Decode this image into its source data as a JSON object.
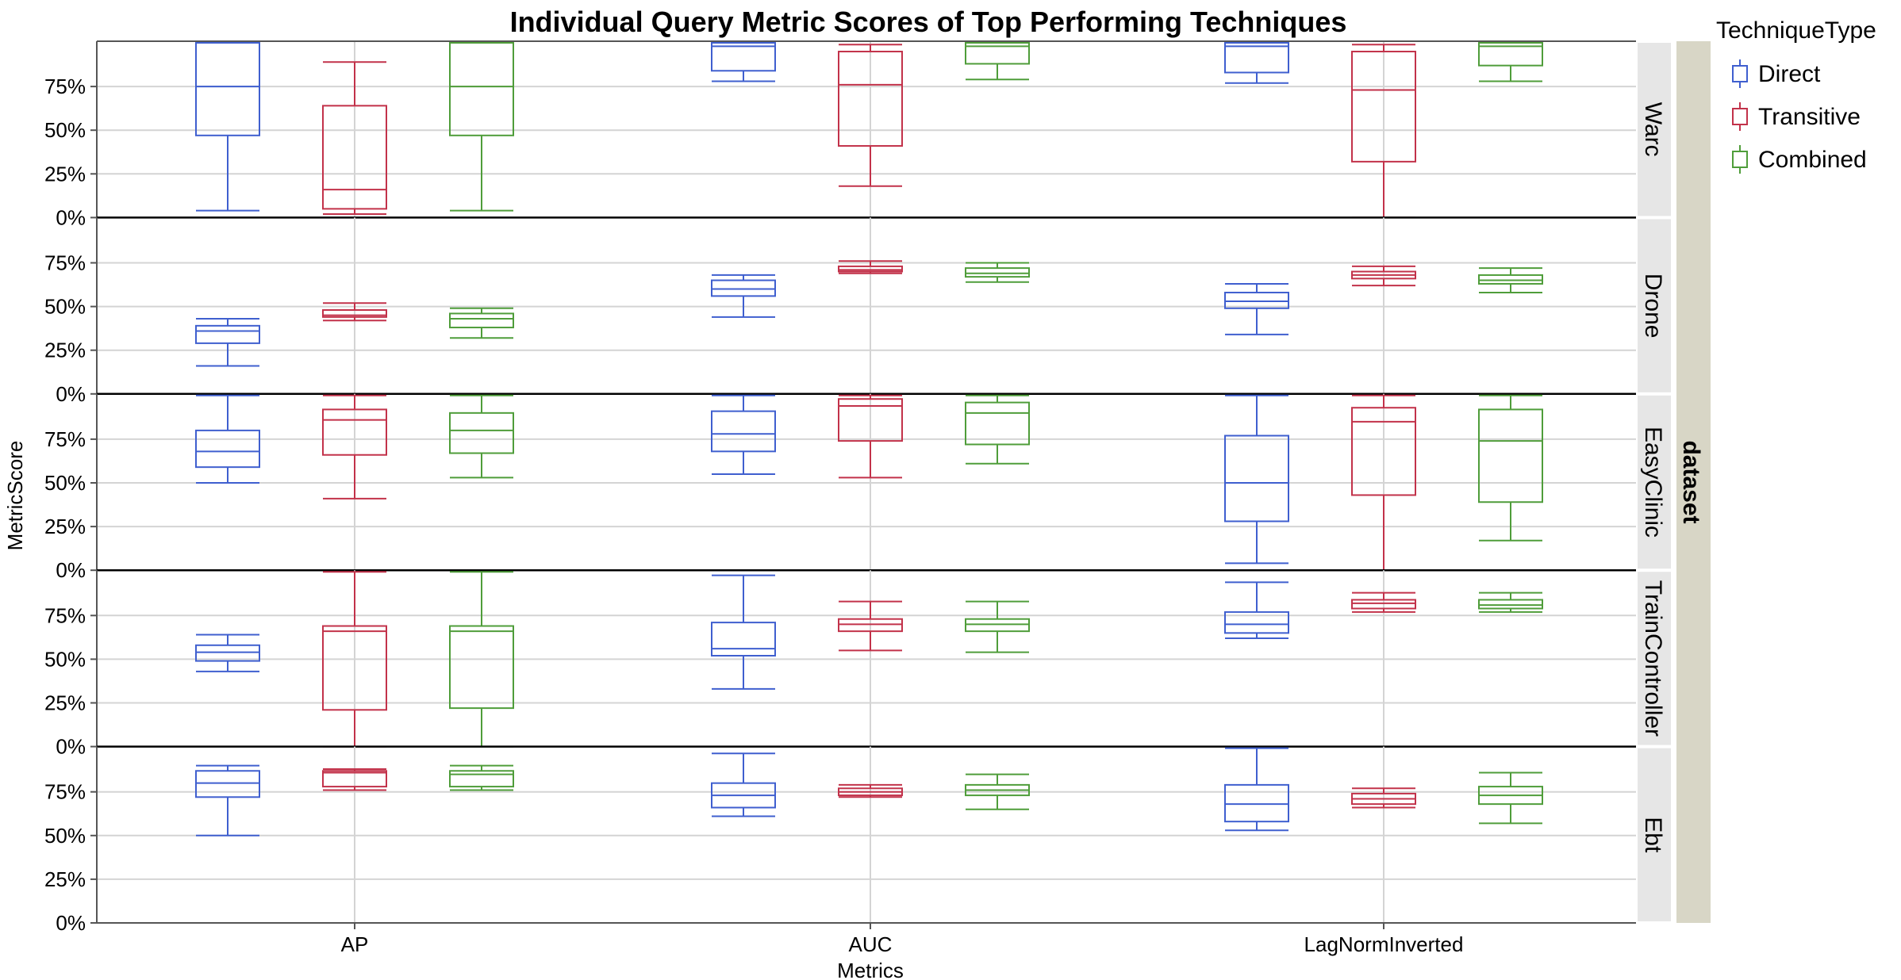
{
  "chart_data": {
    "type": "box",
    "title": "Individual Query Metric Scores of Top Performing Techniques",
    "xlabel": "Metrics",
    "ylabel": "MetricScore",
    "facet_label": "dataset",
    "ylim": [
      0,
      1
    ],
    "y_ticks": [
      0,
      0.25,
      0.5,
      0.75
    ],
    "y_tick_labels": [
      "0%",
      "25%",
      "50%",
      "75%"
    ],
    "grid": true,
    "legend_position": "right",
    "categories": [
      "AP",
      "AUC",
      "LagNormInverted"
    ],
    "legend": {
      "title": "TechniqueType",
      "items": [
        {
          "name": "Direct",
          "color": "#3f5fcf"
        },
        {
          "name": "Transitive",
          "color": "#c2324a"
        },
        {
          "name": "Combined",
          "color": "#4f9d3a"
        }
      ]
    },
    "panels": [
      {
        "dataset": "Warc",
        "boxes": {
          "AP": {
            "Direct": [
              0.04,
              0.47,
              0.75,
              1.0,
              1.0
            ],
            "Transitive": [
              0.02,
              0.05,
              0.16,
              0.64,
              0.89
            ],
            "Combined": [
              0.04,
              0.47,
              0.75,
              1.0,
              1.0
            ]
          },
          "AUC": {
            "Direct": [
              0.78,
              0.84,
              0.98,
              1.0,
              1.0
            ],
            "Transitive": [
              0.18,
              0.41,
              0.76,
              0.95,
              0.99
            ],
            "Combined": [
              0.79,
              0.88,
              0.98,
              1.0,
              1.0
            ]
          },
          "LagNormInverted": {
            "Direct": [
              0.77,
              0.83,
              0.98,
              1.0,
              1.0
            ],
            "Transitive": [
              0.0,
              0.32,
              0.73,
              0.95,
              0.99
            ],
            "Combined": [
              0.78,
              0.87,
              0.98,
              1.0,
              1.0
            ]
          }
        }
      },
      {
        "dataset": "Drone",
        "boxes": {
          "AP": {
            "Direct": [
              0.16,
              0.29,
              0.36,
              0.39,
              0.43
            ],
            "Transitive": [
              0.42,
              0.44,
              0.45,
              0.48,
              0.52
            ],
            "Combined": [
              0.32,
              0.38,
              0.43,
              0.46,
              0.49
            ]
          },
          "AUC": {
            "Direct": [
              0.44,
              0.56,
              0.6,
              0.65,
              0.68
            ],
            "Transitive": [
              0.69,
              0.7,
              0.71,
              0.73,
              0.76
            ],
            "Combined": [
              0.64,
              0.67,
              0.69,
              0.72,
              0.75
            ]
          },
          "LagNormInverted": {
            "Direct": [
              0.34,
              0.49,
              0.53,
              0.58,
              0.63
            ],
            "Transitive": [
              0.62,
              0.66,
              0.68,
              0.7,
              0.73
            ],
            "Combined": [
              0.58,
              0.63,
              0.65,
              0.68,
              0.72
            ]
          }
        }
      },
      {
        "dataset": "EasyClinic",
        "boxes": {
          "AP": {
            "Direct": [
              0.5,
              0.59,
              0.68,
              0.8,
              1.0
            ],
            "Transitive": [
              0.41,
              0.66,
              0.86,
              0.92,
              1.0
            ],
            "Combined": [
              0.53,
              0.67,
              0.8,
              0.9,
              1.0
            ]
          },
          "AUC": {
            "Direct": [
              0.55,
              0.68,
              0.78,
              0.91,
              1.0
            ],
            "Transitive": [
              0.53,
              0.74,
              0.94,
              0.98,
              1.0
            ],
            "Combined": [
              0.61,
              0.72,
              0.9,
              0.96,
              1.0
            ]
          },
          "LagNormInverted": {
            "Direct": [
              0.04,
              0.28,
              0.5,
              0.77,
              1.0
            ],
            "Transitive": [
              0.0,
              0.43,
              0.85,
              0.93,
              1.0
            ],
            "Combined": [
              0.17,
              0.39,
              0.74,
              0.92,
              1.0
            ]
          }
        }
      },
      {
        "dataset": "TrainController",
        "boxes": {
          "AP": {
            "Direct": [
              0.43,
              0.49,
              0.54,
              0.58,
              0.64
            ],
            "Transitive": [
              0.0,
              0.21,
              0.66,
              0.69,
              1.0
            ],
            "Combined": [
              0.0,
              0.22,
              0.66,
              0.69,
              1.0
            ]
          },
          "AUC": {
            "Direct": [
              0.33,
              0.52,
              0.56,
              0.71,
              0.98
            ],
            "Transitive": [
              0.55,
              0.66,
              0.7,
              0.73,
              0.83
            ],
            "Combined": [
              0.54,
              0.66,
              0.7,
              0.73,
              0.83
            ]
          },
          "LagNormInverted": {
            "Direct": [
              0.62,
              0.65,
              0.7,
              0.77,
              0.94
            ],
            "Transitive": [
              0.77,
              0.79,
              0.82,
              0.84,
              0.88
            ],
            "Combined": [
              0.77,
              0.79,
              0.81,
              0.84,
              0.88
            ]
          }
        }
      },
      {
        "dataset": "Ebt",
        "boxes": {
          "AP": {
            "Direct": [
              0.5,
              0.72,
              0.8,
              0.87,
              0.9
            ],
            "Transitive": [
              0.76,
              0.78,
              0.86,
              0.87,
              0.88
            ],
            "Combined": [
              0.76,
              0.78,
              0.85,
              0.87,
              0.9
            ]
          },
          "AUC": {
            "Direct": [
              0.61,
              0.66,
              0.73,
              0.8,
              0.97
            ],
            "Transitive": [
              0.72,
              0.73,
              0.75,
              0.77,
              0.79
            ],
            "Combined": [
              0.65,
              0.73,
              0.76,
              0.79,
              0.85
            ]
          },
          "LagNormInverted": {
            "Direct": [
              0.53,
              0.58,
              0.68,
              0.79,
              1.0
            ],
            "Transitive": [
              0.66,
              0.68,
              0.71,
              0.74,
              0.77
            ],
            "Combined": [
              0.57,
              0.68,
              0.73,
              0.78,
              0.86
            ]
          }
        }
      }
    ]
  }
}
